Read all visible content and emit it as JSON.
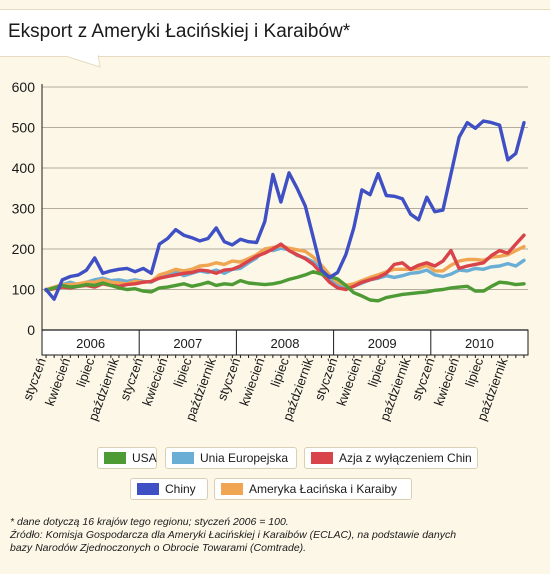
{
  "header": {
    "title": "Eksport z Ameryki Łacińskiej i Karaibów*"
  },
  "chart_data": {
    "type": "line",
    "title": "Eksport z Ameryki Łacińskiej i Karaibów*",
    "xlabel": "",
    "ylabel": "",
    "ylim": [
      0,
      600
    ],
    "yticks": [
      0,
      100,
      200,
      300,
      400,
      500,
      600
    ],
    "grid": "horizontal",
    "legend": "bottom",
    "years": [
      "2006",
      "2007",
      "2008",
      "2009",
      "2010"
    ],
    "month_tick_labels": [
      "styczeń",
      "kwiecień",
      "lipiec",
      "październik"
    ],
    "x": [
      "2006-01",
      "2006-02",
      "2006-03",
      "2006-04",
      "2006-05",
      "2006-06",
      "2006-07",
      "2006-08",
      "2006-09",
      "2006-10",
      "2006-11",
      "2006-12",
      "2007-01",
      "2007-02",
      "2007-03",
      "2007-04",
      "2007-05",
      "2007-06",
      "2007-07",
      "2007-08",
      "2007-09",
      "2007-10",
      "2007-11",
      "2007-12",
      "2008-01",
      "2008-02",
      "2008-03",
      "2008-04",
      "2008-05",
      "2008-06",
      "2008-07",
      "2008-08",
      "2008-09",
      "2008-10",
      "2008-11",
      "2008-12",
      "2009-01",
      "2009-02",
      "2009-03",
      "2009-04",
      "2009-05",
      "2009-06",
      "2009-07",
      "2009-08",
      "2009-09",
      "2009-10",
      "2009-11",
      "2009-12",
      "2010-01",
      "2010-02",
      "2010-03",
      "2010-04",
      "2010-05",
      "2010-06",
      "2010-07",
      "2010-08",
      "2010-09",
      "2010-10",
      "2010-11",
      "2010-12"
    ],
    "series": [
      {
        "name": "USA",
        "color": "#4e9a35",
        "values": [
          98,
          104,
          110,
          106,
          108,
          112,
          110,
          116,
          110,
          104,
          100,
          102,
          96,
          94,
          104,
          106,
          110,
          114,
          108,
          112,
          118,
          110,
          114,
          112,
          122,
          116,
          114,
          112,
          114,
          118,
          125,
          130,
          136,
          144,
          138,
          132,
          126,
          110,
          92,
          84,
          74,
          72,
          80,
          84,
          88,
          90,
          92,
          94,
          98,
          100,
          104,
          106,
          108,
          96,
          96,
          108,
          118,
          116,
          112,
          114
        ]
      },
      {
        "name": "Unia Europejska",
        "color": "#6aaed6",
        "values": [
          100,
          104,
          112,
          118,
          112,
          118,
          124,
          128,
          122,
          124,
          120,
          124,
          120,
          118,
          130,
          138,
          144,
          134,
          140,
          146,
          142,
          148,
          140,
          150,
          152,
          166,
          178,
          200,
          196,
          202,
          198,
          184,
          178,
          168,
          150,
          128,
          112,
          104,
          108,
          116,
          124,
          128,
          134,
          130,
          134,
          140,
          142,
          148,
          136,
          132,
          138,
          148,
          146,
          152,
          150,
          156,
          158,
          164,
          158,
          172
        ]
      },
      {
        "name": "Azja z wyłączeniem Chin",
        "color": "#d9434a",
        "values": [
          98,
          102,
          106,
          104,
          108,
          110,
          106,
          114,
          110,
          108,
          112,
          114,
          118,
          120,
          128,
          132,
          136,
          140,
          142,
          148,
          146,
          140,
          148,
          150,
          158,
          170,
          182,
          190,
          200,
          212,
          196,
          186,
          176,
          162,
          140,
          118,
          104,
          100,
          108,
          118,
          124,
          130,
          140,
          162,
          166,
          150,
          160,
          166,
          158,
          170,
          196,
          152,
          158,
          162,
          166,
          184,
          196,
          190,
          212,
          234
        ]
      },
      {
        "name": "Chiny",
        "color": "#3f4fc4",
        "values": [
          100,
          76,
          124,
          132,
          136,
          148,
          178,
          140,
          146,
          150,
          152,
          144,
          152,
          140,
          212,
          226,
          248,
          234,
          228,
          220,
          226,
          252,
          218,
          210,
          224,
          218,
          216,
          268,
          384,
          316,
          388,
          350,
          306,
          228,
          148,
          130,
          142,
          186,
          252,
          346,
          334,
          386,
          332,
          330,
          324,
          286,
          272,
          328,
          292,
          296,
          386,
          476,
          512,
          498,
          516,
          512,
          506,
          420,
          436,
          512
        ]
      },
      {
        "name": "Ameryka Łacińska i Karaiby",
        "color": "#f0a552",
        "values": [
          100,
          106,
          112,
          112,
          114,
          118,
          118,
          124,
          118,
          116,
          114,
          120,
          118,
          120,
          136,
          142,
          150,
          146,
          150,
          158,
          160,
          166,
          162,
          170,
          168,
          176,
          186,
          200,
          204,
          208,
          202,
          198,
          194,
          180,
          160,
          136,
          118,
          110,
          114,
          122,
          130,
          136,
          144,
          150,
          150,
          150,
          152,
          160,
          146,
          146,
          160,
          170,
          174,
          174,
          172,
          180,
          182,
          186,
          196,
          206
        ]
      }
    ]
  },
  "footnote": {
    "line1": "* dane dotyczą 16 krajów tego regionu; styczeń 2006 = 100.",
    "line2": "Źródło: Komisja Gospodarcza dla Ameryki Łacińskiej i Karaibów (ECLAC), na podstawie danych",
    "line3": "bazy Narodów Zjednoczonych o Obrocie Towarami (Comtrade)."
  }
}
